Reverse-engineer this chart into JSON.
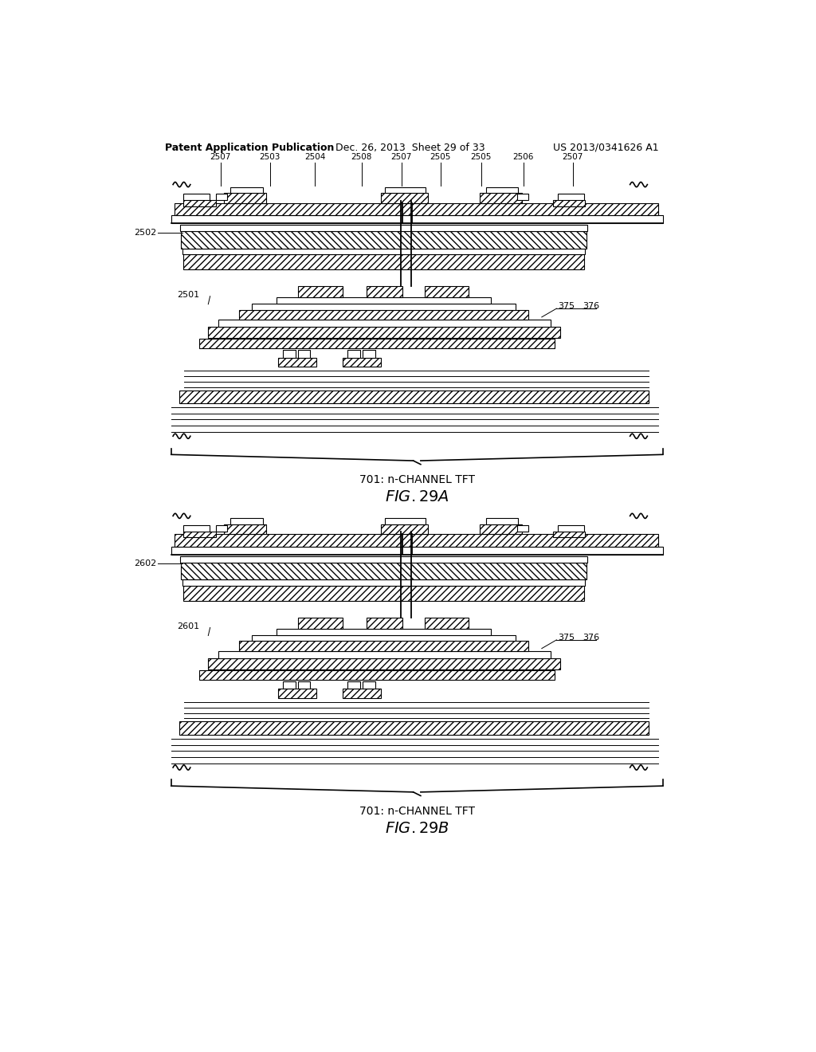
{
  "bg_color": "#ffffff",
  "header_text": "Patent Application Publication",
  "header_date": "Dec. 26, 2013  Sheet 29 of 33",
  "header_number": "US 2013/0341626 A1",
  "fig_a_caption": "701: n-CHANNEL TFT",
  "fig_b_caption": "701: n-CHANNEL TFT",
  "labels_a": [
    "2507",
    "2503",
    "2504",
    "2508",
    "2507",
    "2505",
    "2505",
    "2506",
    "2507"
  ],
  "labels_a_left1": "2502",
  "labels_a_left2": "2501",
  "labels_a_right1": "375",
  "labels_a_right2": "376",
  "labels_b_left1": "2602",
  "labels_b_left2": "2601",
  "labels_b_right1": "375",
  "labels_b_right2": "376"
}
